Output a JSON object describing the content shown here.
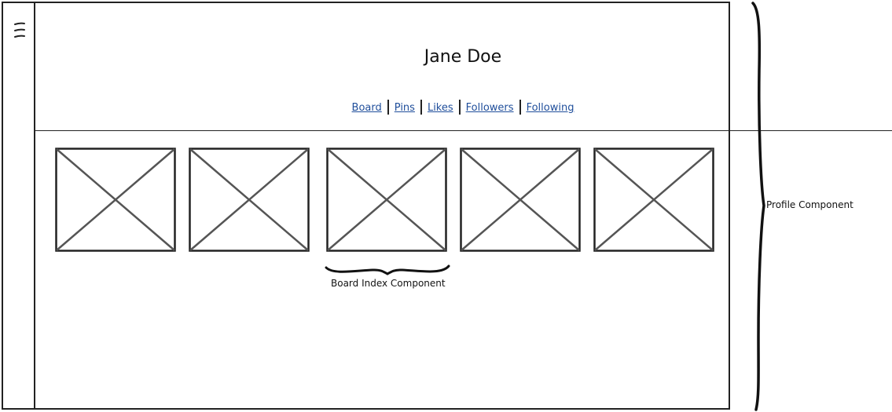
{
  "profile": {
    "name": "Jane Doe"
  },
  "nav": {
    "items": [
      {
        "label": "Board"
      },
      {
        "label": "Pins"
      },
      {
        "label": "Likes"
      },
      {
        "label": "Followers"
      },
      {
        "label": "Following"
      }
    ]
  },
  "boards": {
    "count": 5,
    "icon": "image-placeholder-icon"
  },
  "annotations": {
    "board_index": "Board Index Component",
    "profile": "Profile Component"
  },
  "colors": {
    "link": "#1f4e9b",
    "stroke": "#222222",
    "placeholder_cross": "#555555"
  }
}
